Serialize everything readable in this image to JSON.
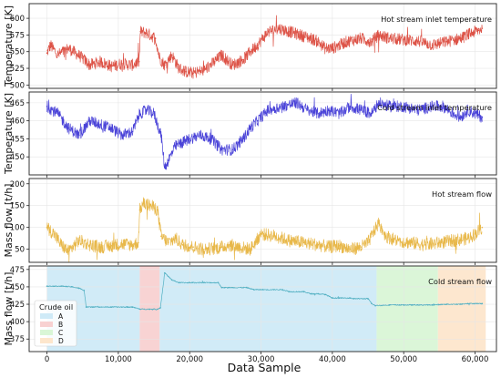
{
  "colors": {
    "hot_temp": "#dd5347",
    "cold_temp": "#4a43d8",
    "hot_flow": "#e8b84a",
    "cold_flow": "#52b0c2",
    "crude_A": "#cfeaf7",
    "crude_B": "#f8d1d1",
    "crude_C": "#d9f6d6",
    "crude_D": "#fde6cc",
    "grid": "#e6e6e6",
    "frame": "#222222"
  },
  "shared_x": {
    "label": "Data Sample",
    "range": [
      -2500,
      63000
    ],
    "ticks": [
      0,
      10000,
      20000,
      30000,
      40000,
      50000,
      60000
    ],
    "tick_labels": [
      "0",
      "10,000",
      "20,000",
      "30,000",
      "40,000",
      "50,000",
      "60,000"
    ]
  },
  "chart_data": [
    {
      "type": "line",
      "title": "",
      "ylabel": "Temperature [K]",
      "ylim": [
        495,
        622
      ],
      "yticks": [
        500,
        525,
        550,
        575,
        600
      ],
      "grid": true,
      "series": [
        {
          "name": "Hot stream inlet temperature",
          "color_key": "hot_temp",
          "noise": 9,
          "x": [
            0,
            500,
            1500,
            3000,
            4000,
            5000,
            6000,
            7500,
            9000,
            10500,
            12000,
            12900,
            13100,
            14000,
            15200,
            15800,
            16500,
            17500,
            18500,
            19500,
            20500,
            22000,
            23500,
            24500,
            26000,
            27500,
            28500,
            29500,
            31000,
            32500,
            34000,
            35500,
            37000,
            38000,
            39000,
            40000,
            42000,
            44000,
            45500,
            46500,
            48000,
            50000,
            52000,
            54000,
            56000,
            58000,
            59500,
            60500,
            61000
          ],
          "y": [
            548,
            560,
            545,
            555,
            548,
            540,
            530,
            535,
            528,
            532,
            530,
            535,
            580,
            578,
            570,
            540,
            530,
            545,
            525,
            520,
            518,
            522,
            535,
            545,
            530,
            538,
            550,
            560,
            580,
            585,
            580,
            575,
            570,
            565,
            555,
            555,
            565,
            570,
            565,
            575,
            570,
            568,
            566,
            560,
            565,
            570,
            578,
            582,
            585
          ]
        }
      ]
    },
    {
      "type": "line",
      "title": "",
      "ylabel": "Temperature [K]",
      "ylim": [
        445,
        468
      ],
      "yticks": [
        450,
        455,
        460,
        465
      ],
      "grid": true,
      "series": [
        {
          "name": "Cold stream inlet temperature",
          "color_key": "cold_temp",
          "noise": 1.6,
          "x": [
            0,
            1500,
            3000,
            4500,
            6000,
            7500,
            9000,
            10500,
            12000,
            13000,
            14000,
            15000,
            16000,
            16500,
            17000,
            18000,
            19000,
            20000,
            21500,
            23000,
            24500,
            26000,
            27500,
            28500,
            29500,
            31000,
            33000,
            35000,
            36500,
            38000,
            39500,
            41000,
            42500,
            44000,
            45500,
            46500,
            48000,
            50000,
            52000,
            54000,
            55500,
            57000,
            58000,
            59000,
            60000,
            61000
          ],
          "y": [
            464,
            462,
            458,
            456,
            460,
            459,
            458,
            456,
            457,
            462,
            463,
            462,
            456,
            447,
            449,
            453,
            454,
            455,
            456,
            455,
            452,
            452,
            455,
            458,
            460,
            463,
            464,
            465,
            463,
            462,
            463,
            462,
            464,
            463,
            462,
            465,
            464,
            464,
            463,
            464,
            464,
            462,
            461,
            463,
            462,
            461
          ]
        }
      ]
    },
    {
      "type": "line",
      "title": "",
      "ylabel": "Mass flow [t/h]",
      "ylim": [
        20,
        212
      ],
      "yticks": [
        50,
        100,
        150,
        200
      ],
      "grid": true,
      "series": [
        {
          "name": "Hot stream flow",
          "color_key": "hot_flow",
          "noise": 15,
          "x": [
            0,
            1000,
            2000,
            3000,
            4500,
            6000,
            7500,
            9000,
            10500,
            12000,
            12800,
            13000,
            13500,
            14500,
            15500,
            16000,
            17000,
            18000,
            19000,
            20500,
            22000,
            23500,
            24500,
            25500,
            27000,
            28500,
            30000,
            32000,
            34000,
            36000,
            38000,
            39500,
            41000,
            42500,
            44000,
            45000,
            45800,
            46500,
            47500,
            49000,
            51000,
            53000,
            55000,
            57000,
            59000,
            60000,
            61000
          ],
          "y": [
            100,
            85,
            60,
            45,
            70,
            60,
            55,
            58,
            62,
            60,
            65,
            140,
            155,
            150,
            140,
            80,
            65,
            75,
            60,
            55,
            50,
            52,
            55,
            60,
            55,
            50,
            85,
            80,
            70,
            65,
            60,
            55,
            58,
            50,
            55,
            65,
            90,
            110,
            80,
            70,
            65,
            60,
            65,
            70,
            75,
            85,
            100
          ]
        }
      ]
    },
    {
      "type": "line",
      "title": "",
      "ylabel": "Mass flow [t/h]",
      "ylim": [
        357,
        480
      ],
      "yticks": [
        375,
        400,
        425,
        450,
        475
      ],
      "grid": true,
      "series": [
        {
          "name": "Cold stream flow",
          "color_key": "cold_flow",
          "noise": 0.8,
          "x": [
            0,
            2000,
            3500,
            4500,
            5200,
            5500,
            9000,
            12000,
            13000,
            15500,
            15900,
            16500,
            17500,
            18500,
            20000,
            22000,
            24000,
            24500,
            28000,
            29000,
            33000,
            34000,
            36000,
            37000,
            38000,
            39000,
            40000,
            41000,
            42500,
            43000,
            45000,
            45500,
            46000,
            48000,
            50000,
            52000,
            54000,
            56000,
            57500,
            58000,
            59000,
            61000
          ],
          "y": [
            451,
            451,
            450,
            448,
            445,
            421,
            421,
            421,
            418,
            418,
            420,
            470,
            460,
            456,
            456,
            456,
            456,
            449,
            449,
            446,
            446,
            443,
            443,
            440,
            440,
            439,
            434,
            434,
            434,
            433,
            433,
            426,
            423,
            424,
            424,
            424,
            424,
            425,
            425,
            425,
            426,
            426
          ]
        }
      ],
      "legend": {
        "title": "Crude oil",
        "entries": [
          {
            "label": "A",
            "color_key": "crude_A"
          },
          {
            "label": "B",
            "color_key": "crude_B"
          },
          {
            "label": "C",
            "color_key": "crude_C"
          },
          {
            "label": "D",
            "color_key": "crude_D"
          }
        ]
      },
      "regions": [
        {
          "name": "A",
          "from": 0,
          "to": 13000,
          "color_key": "crude_A"
        },
        {
          "name": "B",
          "from": 13000,
          "to": 15800,
          "color_key": "crude_B"
        },
        {
          "name": "A",
          "from": 15800,
          "to": 46200,
          "color_key": "crude_A"
        },
        {
          "name": "C",
          "from": 46200,
          "to": 54800,
          "color_key": "crude_C"
        },
        {
          "name": "D",
          "from": 54800,
          "to": 61500,
          "color_key": "crude_D"
        }
      ]
    }
  ]
}
